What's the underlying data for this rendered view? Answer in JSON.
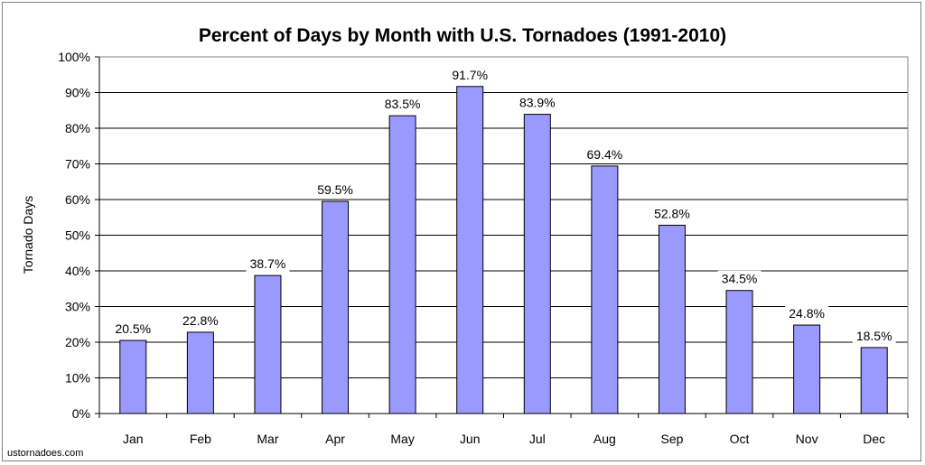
{
  "chart_data": {
    "type": "bar",
    "title": "Percent of Days by Month with U.S. Tornadoes (1991-2010)",
    "xlabel": "",
    "ylabel": "Tornado Days",
    "categories": [
      "Jan",
      "Feb",
      "Mar",
      "Apr",
      "May",
      "Jun",
      "Jul",
      "Aug",
      "Sep",
      "Oct",
      "Nov",
      "Dec"
    ],
    "values": [
      20.5,
      22.8,
      38.7,
      59.5,
      83.5,
      91.7,
      83.9,
      69.4,
      52.8,
      34.5,
      24.8,
      18.5
    ],
    "data_labels": [
      "20.5%",
      "22.8%",
      "38.7%",
      "59.5%",
      "83.5%",
      "91.7%",
      "83.9%",
      "69.4%",
      "52.8%",
      "34.5%",
      "24.8%",
      "18.5%"
    ],
    "ylim": [
      0,
      100
    ],
    "yticks": [
      0,
      10,
      20,
      30,
      40,
      50,
      60,
      70,
      80,
      90,
      100
    ],
    "ytick_labels": [
      "0%",
      "10%",
      "20%",
      "30%",
      "40%",
      "50%",
      "60%",
      "70%",
      "80%",
      "90%",
      "100%"
    ],
    "grid": true,
    "bar_color": "#9999FF"
  },
  "credit": "ustornadoes.com"
}
